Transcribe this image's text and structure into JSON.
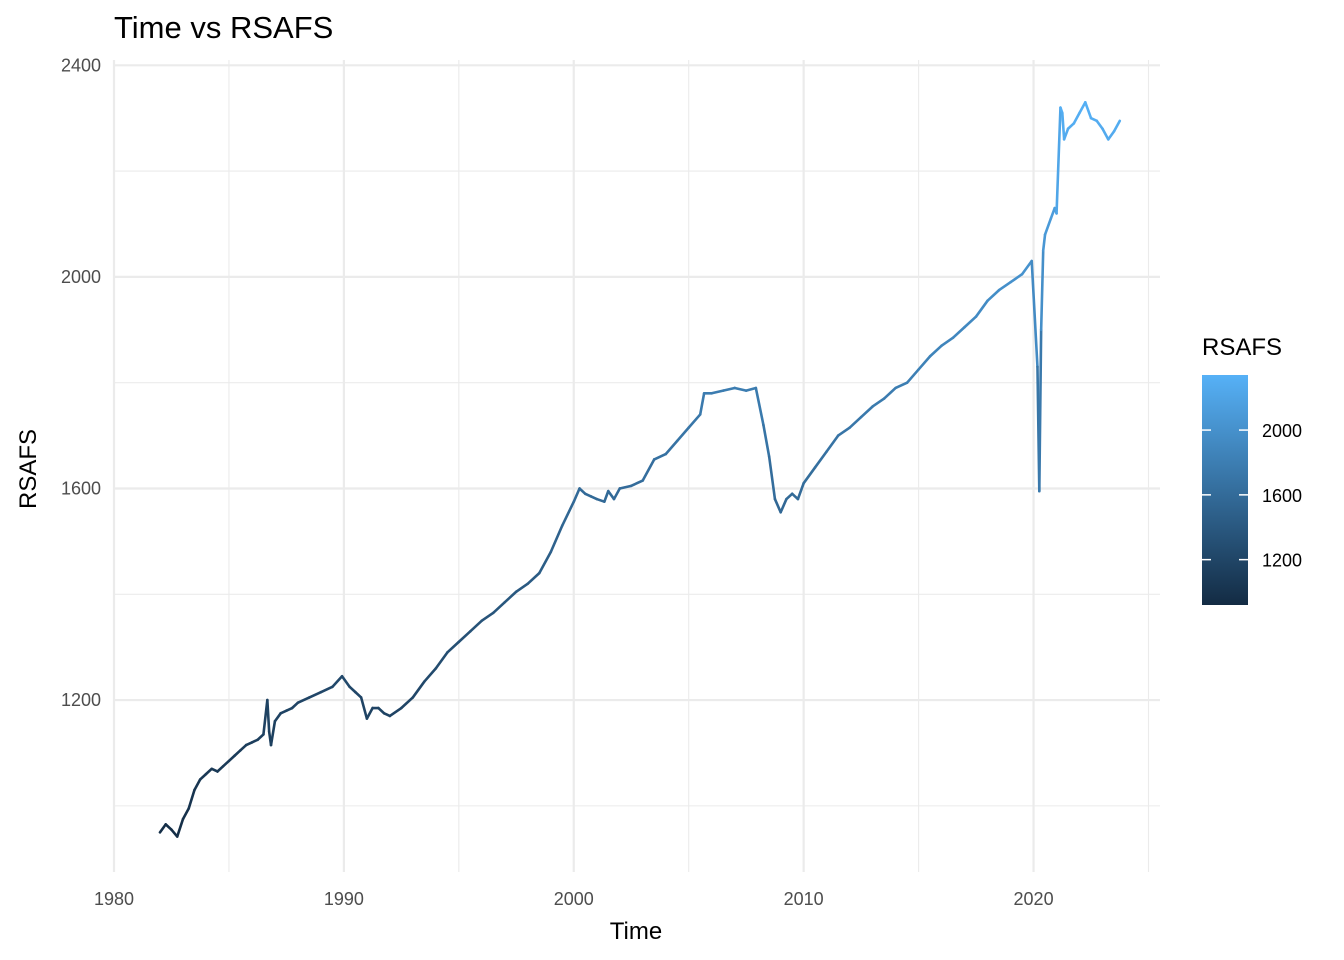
{
  "chart_data": {
    "type": "line",
    "title": "Time vs RSAFS",
    "xlabel": "Time",
    "ylabel": "RSAFS",
    "xlim": [
      1980,
      2025.5
    ],
    "ylim": [
      875,
      2410
    ],
    "x_ticks": [
      1980,
      1990,
      2000,
      2010,
      2020
    ],
    "x_tick_labels": [
      "1980",
      "1990",
      "2000",
      "2010",
      "2020"
    ],
    "y_ticks": [
      1200,
      1600,
      2000,
      2400
    ],
    "y_tick_labels": [
      "1200",
      "1600",
      "2000",
      "2400"
    ],
    "grid": true,
    "legend": {
      "title": "RSAFS",
      "placement": "right",
      "type": "colorbar",
      "range": [
        920,
        2340
      ],
      "ticks": [
        1200,
        1600,
        2000
      ],
      "tick_labels": [
        "1200",
        "1600",
        "2000"
      ],
      "low_color": "#132B43",
      "high_color": "#56B1F7"
    },
    "series": [
      {
        "color_by": "RSAFS",
        "x": [
          1982.0,
          1982.25,
          1982.5,
          1982.75,
          1983.0,
          1983.25,
          1983.5,
          1983.75,
          1984.0,
          1984.25,
          1984.5,
          1984.75,
          1985.0,
          1985.25,
          1985.5,
          1985.75,
          1986.0,
          1986.25,
          1986.5,
          1986.67,
          1986.75,
          1986.83,
          1987.0,
          1987.25,
          1987.5,
          1987.75,
          1988.0,
          1988.5,
          1989.0,
          1989.5,
          1989.92,
          1990.25,
          1990.5,
          1990.75,
          1991.0,
          1991.25,
          1991.5,
          1991.75,
          1992.0,
          1992.5,
          1993.0,
          1993.5,
          1994.0,
          1994.5,
          1995.0,
          1995.5,
          1996.0,
          1996.5,
          1997.0,
          1997.5,
          1998.0,
          1998.5,
          1999.0,
          1999.5,
          2000.0,
          2000.25,
          2000.5,
          2000.75,
          2001.0,
          2001.33,
          2001.5,
          2001.75,
          2002.0,
          2002.5,
          2003.0,
          2003.5,
          2004.0,
          2004.5,
          2005.0,
          2005.5,
          2005.67,
          2006.0,
          2006.5,
          2007.0,
          2007.5,
          2007.92,
          2008.25,
          2008.5,
          2008.75,
          2009.0,
          2009.25,
          2009.5,
          2009.75,
          2010.0,
          2010.5,
          2011.0,
          2011.5,
          2012.0,
          2012.5,
          2013.0,
          2013.5,
          2014.0,
          2014.5,
          2015.0,
          2015.5,
          2016.0,
          2016.5,
          2017.0,
          2017.5,
          2018.0,
          2018.5,
          2019.0,
          2019.5,
          2019.92,
          2020.17,
          2020.25,
          2020.33,
          2020.42,
          2020.5,
          2020.75,
          2020.92,
          2021.0,
          2021.17,
          2021.25,
          2021.33,
          2021.5,
          2021.75,
          2022.0,
          2022.25,
          2022.5,
          2022.75,
          2023.0,
          2023.25,
          2023.5,
          2023.75
        ],
        "y": [
          950,
          965,
          955,
          942,
          975,
          995,
          1030,
          1050,
          1060,
          1070,
          1065,
          1075,
          1085,
          1095,
          1105,
          1115,
          1120,
          1125,
          1135,
          1200,
          1140,
          1115,
          1160,
          1175,
          1180,
          1185,
          1195,
          1205,
          1215,
          1225,
          1245,
          1225,
          1215,
          1205,
          1165,
          1185,
          1185,
          1175,
          1170,
          1185,
          1205,
          1235,
          1260,
          1290,
          1310,
          1330,
          1350,
          1365,
          1385,
          1405,
          1420,
          1440,
          1480,
          1530,
          1575,
          1600,
          1590,
          1585,
          1580,
          1575,
          1595,
          1580,
          1600,
          1605,
          1615,
          1655,
          1665,
          1690,
          1715,
          1740,
          1780,
          1780,
          1785,
          1790,
          1785,
          1790,
          1720,
          1660,
          1580,
          1555,
          1580,
          1590,
          1580,
          1610,
          1640,
          1670,
          1700,
          1715,
          1735,
          1755,
          1770,
          1790,
          1800,
          1825,
          1850,
          1870,
          1885,
          1905,
          1925,
          1955,
          1975,
          1990,
          2005,
          2030,
          1830,
          1595,
          1900,
          2050,
          2080,
          2110,
          2130,
          2120,
          2320,
          2310,
          2260,
          2280,
          2290,
          2310,
          2330,
          2300,
          2295,
          2280,
          2260,
          2275,
          2295
        ]
      }
    ]
  }
}
